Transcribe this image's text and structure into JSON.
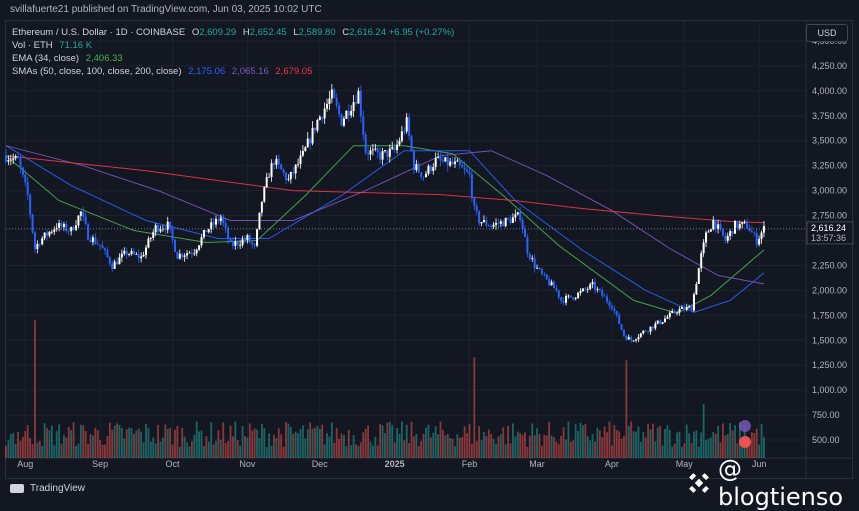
{
  "header": {
    "publisher": "svillafuerte21 published on TradingView.com, Jun 03, 2025 10:02 UTC"
  },
  "legend": {
    "symbol": "Ethereum / U.S. Dollar · 1D · COINBASE",
    "o_label": "O",
    "o": "2,609.29",
    "h_label": "H",
    "h": "2,652.45",
    "l_label": "L",
    "l": "2,589.80",
    "c_label": "C",
    "c": "2,616.24",
    "chg": "+6.95 (+0.27%)",
    "vol_label": "Vol · ETH",
    "vol": "71.16 K",
    "ema_label": "EMA (34, close)",
    "ema": "2,406.33",
    "sma_label": "SMAs (50, close, 100, close, 200, close)",
    "sma50": "2,175.06",
    "sma100": "2,065.16",
    "sma200": "2,679.05"
  },
  "currency_button": "USD",
  "price_tag": {
    "price": "2,616.24",
    "countdown": "13:57:36"
  },
  "footer": {
    "brand": "TradingView"
  },
  "watermark": "@ blogtienso",
  "colors": {
    "up": "#ffffff",
    "down": "#2962ff",
    "ema": "#4caf50",
    "sma50": "#2962ff",
    "sma100": "#7e57c2",
    "sma200": "#f23645",
    "vol_up": "#26a69a",
    "vol_down": "#ef5350",
    "background": "#131722"
  },
  "chart_data": {
    "type": "candlestick",
    "y_ticks": [
      "4,500.00",
      "4,250.00",
      "4,000.00",
      "3,750.00",
      "3,500.00",
      "3,250.00",
      "3,000.00",
      "2,750.00",
      "2,500.00",
      "2,250.00",
      "2,000.00",
      "1,750.00",
      "1,500.00",
      "1,250.00",
      "1,000.00",
      "750.00",
      "500.00"
    ],
    "y_tick_values": [
      4500,
      4250,
      4000,
      3750,
      3500,
      3250,
      3000,
      2750,
      2500,
      2250,
      2000,
      1750,
      1500,
      1250,
      1000,
      750,
      500
    ],
    "x_ticks": [
      "Aug",
      "Sep",
      "Oct",
      "Nov",
      "Dec",
      "2025",
      "Feb",
      "Mar",
      "Apr",
      "May",
      "Jun"
    ],
    "x_tick_dates": [
      "2024-08-01",
      "2024-09-01",
      "2024-10-01",
      "2024-11-01",
      "2024-12-01",
      "2025-01-01",
      "2025-02-01",
      "2025-03-01",
      "2025-04-01",
      "2025-05-01",
      "2025-06-01"
    ],
    "x_range": [
      "2024-07-24",
      "2025-06-20"
    ],
    "y_range": [
      320,
      4700
    ],
    "last_price": 2616.24,
    "price_path": [
      [
        "2024-07-24",
        3350
      ],
      [
        "2024-07-29",
        3300
      ],
      [
        "2024-08-02",
        2950
      ],
      [
        "2024-08-05",
        2420
      ],
      [
        "2024-08-07",
        2500
      ],
      [
        "2024-08-14",
        2650
      ],
      [
        "2024-08-20",
        2600
      ],
      [
        "2024-08-24",
        2780
      ],
      [
        "2024-08-27",
        2550
      ],
      [
        "2024-09-01",
        2450
      ],
      [
        "2024-09-06",
        2250
      ],
      [
        "2024-09-12",
        2380
      ],
      [
        "2024-09-18",
        2330
      ],
      [
        "2024-09-24",
        2630
      ],
      [
        "2024-09-29",
        2650
      ],
      [
        "2024-10-03",
        2350
      ],
      [
        "2024-10-10",
        2400
      ],
      [
        "2024-10-15",
        2600
      ],
      [
        "2024-10-21",
        2730
      ],
      [
        "2024-10-25",
        2450
      ],
      [
        "2024-11-01",
        2520
      ],
      [
        "2024-11-04",
        2420
      ],
      [
        "2024-11-07",
        2900
      ],
      [
        "2024-11-10",
        3180
      ],
      [
        "2024-11-12",
        3300
      ],
      [
        "2024-11-18",
        3100
      ],
      [
        "2024-11-24",
        3350
      ],
      [
        "2024-11-30",
        3700
      ],
      [
        "2024-12-06",
        3950
      ],
      [
        "2024-12-10",
        3700
      ],
      [
        "2024-12-15",
        3900
      ],
      [
        "2024-12-17",
        3980
      ],
      [
        "2024-12-20",
        3400
      ],
      [
        "2024-12-26",
        3350
      ],
      [
        "2025-01-01",
        3400
      ],
      [
        "2025-01-06",
        3680
      ],
      [
        "2025-01-09",
        3250
      ],
      [
        "2025-01-13",
        3150
      ],
      [
        "2025-01-18",
        3300
      ],
      [
        "2025-01-27",
        3250
      ],
      [
        "2025-02-01",
        3150
      ],
      [
        "2025-02-03",
        2800
      ],
      [
        "2025-02-05",
        2700
      ],
      [
        "2025-02-10",
        2650
      ],
      [
        "2025-02-17",
        2700
      ],
      [
        "2025-02-22",
        2750
      ],
      [
        "2025-02-25",
        2400
      ],
      [
        "2025-02-28",
        2250
      ],
      [
        "2025-03-03",
        2150
      ],
      [
        "2025-03-09",
        2000
      ],
      [
        "2025-03-11",
        1900
      ],
      [
        "2025-03-17",
        1950
      ],
      [
        "2025-03-24",
        2050
      ],
      [
        "2025-03-28",
        1950
      ],
      [
        "2025-04-01",
        1850
      ],
      [
        "2025-04-06",
        1550
      ],
      [
        "2025-04-09",
        1500
      ],
      [
        "2025-04-15",
        1600
      ],
      [
        "2025-04-22",
        1700
      ],
      [
        "2025-04-28",
        1800
      ],
      [
        "2025-05-04",
        1830
      ],
      [
        "2025-05-08",
        2350
      ],
      [
        "2025-05-10",
        2550
      ],
      [
        "2025-05-13",
        2700
      ],
      [
        "2025-05-18",
        2500
      ],
      [
        "2025-05-22",
        2650
      ],
      [
        "2025-05-27",
        2650
      ],
      [
        "2025-05-31",
        2500
      ],
      [
        "2025-06-03",
        2616
      ]
    ],
    "series": [
      {
        "name": "EMA (34, close)",
        "last": 2406.33,
        "points": [
          [
            "2024-07-24",
            3350
          ],
          [
            "2024-08-15",
            2900
          ],
          [
            "2024-09-15",
            2600
          ],
          [
            "2024-10-15",
            2480
          ],
          [
            "2024-11-05",
            2500
          ],
          [
            "2024-11-25",
            2950
          ],
          [
            "2024-12-15",
            3450
          ],
          [
            "2025-01-05",
            3450
          ],
          [
            "2025-01-25",
            3370
          ],
          [
            "2025-02-15",
            2950
          ],
          [
            "2025-03-10",
            2450
          ],
          [
            "2025-04-10",
            1900
          ],
          [
            "2025-04-28",
            1770
          ],
          [
            "2025-05-12",
            1950
          ],
          [
            "2025-06-03",
            2406
          ]
        ]
      },
      {
        "name": "SMA 50",
        "last": 2175.06,
        "points": [
          [
            "2024-07-24",
            3450
          ],
          [
            "2024-08-20",
            3050
          ],
          [
            "2024-09-20",
            2700
          ],
          [
            "2024-10-20",
            2520
          ],
          [
            "2024-11-10",
            2520
          ],
          [
            "2024-12-10",
            2950
          ],
          [
            "2025-01-05",
            3400
          ],
          [
            "2025-02-01",
            3400
          ],
          [
            "2025-02-20",
            2900
          ],
          [
            "2025-03-20",
            2400
          ],
          [
            "2025-04-15",
            2000
          ],
          [
            "2025-05-05",
            1780
          ],
          [
            "2025-05-20",
            1900
          ],
          [
            "2025-06-03",
            2175
          ]
        ]
      },
      {
        "name": "SMA 100",
        "last": 2065.16,
        "points": [
          [
            "2024-07-24",
            3450
          ],
          [
            "2024-08-25",
            3250
          ],
          [
            "2024-09-25",
            3000
          ],
          [
            "2024-10-25",
            2700
          ],
          [
            "2024-11-20",
            2700
          ],
          [
            "2024-12-20",
            3000
          ],
          [
            "2025-01-20",
            3350
          ],
          [
            "2025-02-10",
            3400
          ],
          [
            "2025-03-05",
            3150
          ],
          [
            "2025-04-01",
            2800
          ],
          [
            "2025-04-25",
            2420
          ],
          [
            "2025-05-15",
            2150
          ],
          [
            "2025-06-03",
            2065
          ]
        ]
      },
      {
        "name": "SMA 200",
        "last": 2679.05,
        "points": [
          [
            "2024-07-24",
            3350
          ],
          [
            "2024-08-20",
            3280
          ],
          [
            "2024-09-20",
            3200
          ],
          [
            "2024-10-20",
            3100
          ],
          [
            "2024-11-20",
            3000
          ],
          [
            "2024-12-20",
            2980
          ],
          [
            "2025-01-20",
            2960
          ],
          [
            "2025-02-20",
            2900
          ],
          [
            "2025-03-20",
            2820
          ],
          [
            "2025-04-20",
            2750
          ],
          [
            "2025-05-20",
            2690
          ],
          [
            "2025-06-03",
            2679
          ]
        ]
      }
    ],
    "volume": {
      "spikes": [
        [
          "2024-08-05",
          1700
        ],
        [
          "2025-02-03",
          1330
        ],
        [
          "2025-04-07",
          1300
        ],
        [
          "2025-05-09",
          860
        ]
      ]
    }
  }
}
